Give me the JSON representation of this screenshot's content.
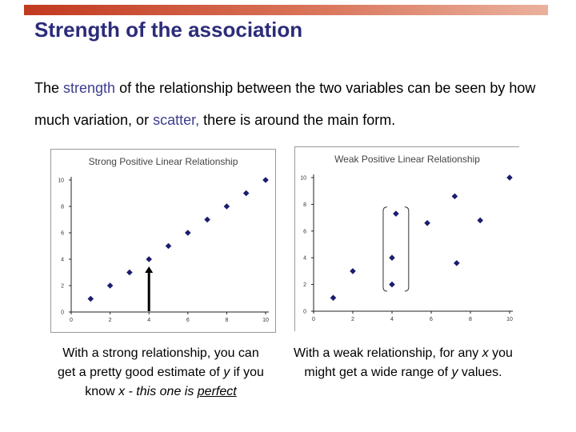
{
  "slide": {
    "title": "Strength of the association",
    "intro": {
      "p1": "The ",
      "strength": "strength",
      "p2": " of the relationship between the two variables can be seen by how much variation, or ",
      "scatter": "scatter,",
      "p3": " there is around the main form."
    }
  },
  "colors": {
    "title": "#2c2c7a",
    "accent": "#3d3d8f",
    "point": "#1c1c6e"
  },
  "chart_data": [
    {
      "type": "scatter",
      "title": "Strong Positive Linear Relationship",
      "xlim": [
        0,
        10
      ],
      "ylim": [
        0,
        10
      ],
      "x_ticks": [
        "0",
        "2",
        "4",
        "6",
        "8",
        "10"
      ],
      "y_ticks": [
        "0",
        "2",
        "4",
        "6",
        "8",
        "10"
      ],
      "points": [
        [
          1,
          1
        ],
        [
          2,
          2
        ],
        [
          3,
          3
        ],
        [
          4,
          4
        ],
        [
          5,
          5
        ],
        [
          6,
          6
        ],
        [
          7,
          7
        ],
        [
          8,
          8
        ],
        [
          9,
          9
        ],
        [
          10,
          10
        ]
      ],
      "annotation": "arrow pointing up to the point at x = 4"
    },
    {
      "type": "scatter",
      "title": "Weak Positive Linear Relationship",
      "xlim": [
        0,
        10
      ],
      "ylim": [
        0,
        10
      ],
      "x_ticks": [
        "0",
        "2",
        "4",
        "6",
        "8",
        "10"
      ],
      "y_ticks": [
        "0",
        "2",
        "4",
        "6",
        "8",
        "10"
      ],
      "points": [
        [
          1,
          1
        ],
        [
          2,
          3
        ],
        [
          4,
          2
        ],
        [
          4,
          4
        ],
        [
          4.2,
          7.3
        ],
        [
          5.8,
          6.6
        ],
        [
          7.2,
          8.6
        ],
        [
          7.3,
          3.6
        ],
        [
          8.5,
          6.8
        ],
        [
          10,
          10
        ]
      ],
      "annotation": "bracket around the points at x = 4"
    }
  ],
  "captions": {
    "strong": {
      "text1": "With a strong relationship, you can get a pretty good estimate of ",
      "y": "y",
      "text2": " if you know ",
      "x": "x",
      "text3": " - this one is ",
      "perfect": "perfect"
    },
    "weak": {
      "text1": "With a weak relationship, for any ",
      "x": "x",
      "text2": " you might get a wide range of ",
      "y": "y",
      "text3": " values."
    }
  }
}
